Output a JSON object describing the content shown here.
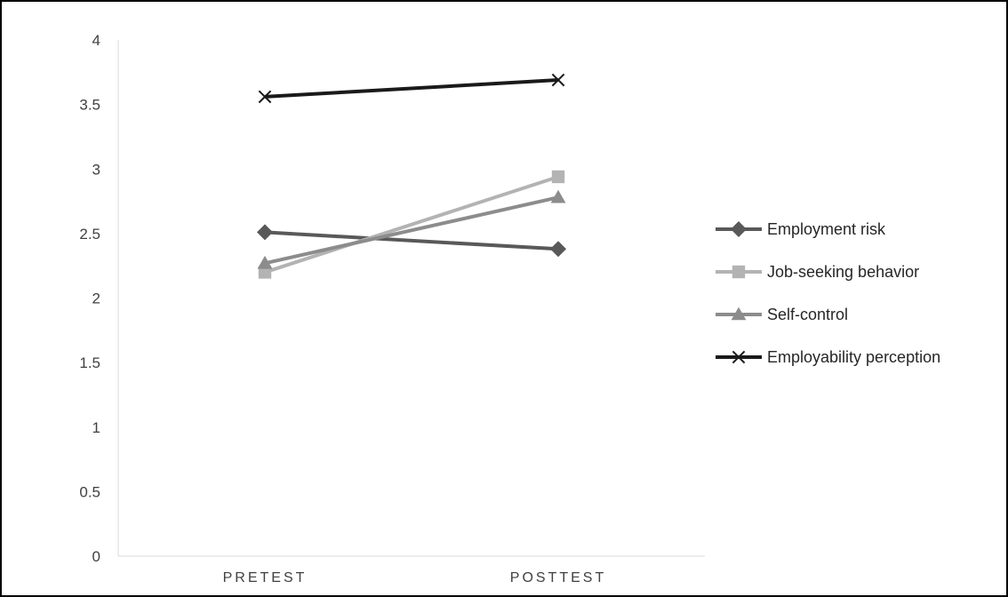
{
  "chart_data": {
    "type": "line",
    "categories": [
      "PRETEST",
      "POSTTEST"
    ],
    "ylim": [
      0,
      4
    ],
    "yticks": [
      0,
      0.5,
      1,
      1.5,
      2,
      2.5,
      3,
      3.5,
      4
    ],
    "ytick_labels": [
      "0",
      "0.5",
      "1",
      "1.5",
      "2",
      "2.5",
      "3",
      "3.5",
      "4"
    ],
    "grid": false,
    "legend_position": "right",
    "series": [
      {
        "name": "Employment risk",
        "values": [
          2.51,
          2.38
        ],
        "color": "#595959",
        "marker": "diamond"
      },
      {
        "name": "Job-seeking behavior",
        "values": [
          2.2,
          2.94
        ],
        "color": "#b3b3b3",
        "marker": "square"
      },
      {
        "name": "Self-control",
        "values": [
          2.27,
          2.78
        ],
        "color": "#8c8c8c",
        "marker": "triangle"
      },
      {
        "name": "Employability perception",
        "values": [
          3.56,
          3.69
        ],
        "color": "#1a1a1a",
        "marker": "x"
      }
    ]
  }
}
